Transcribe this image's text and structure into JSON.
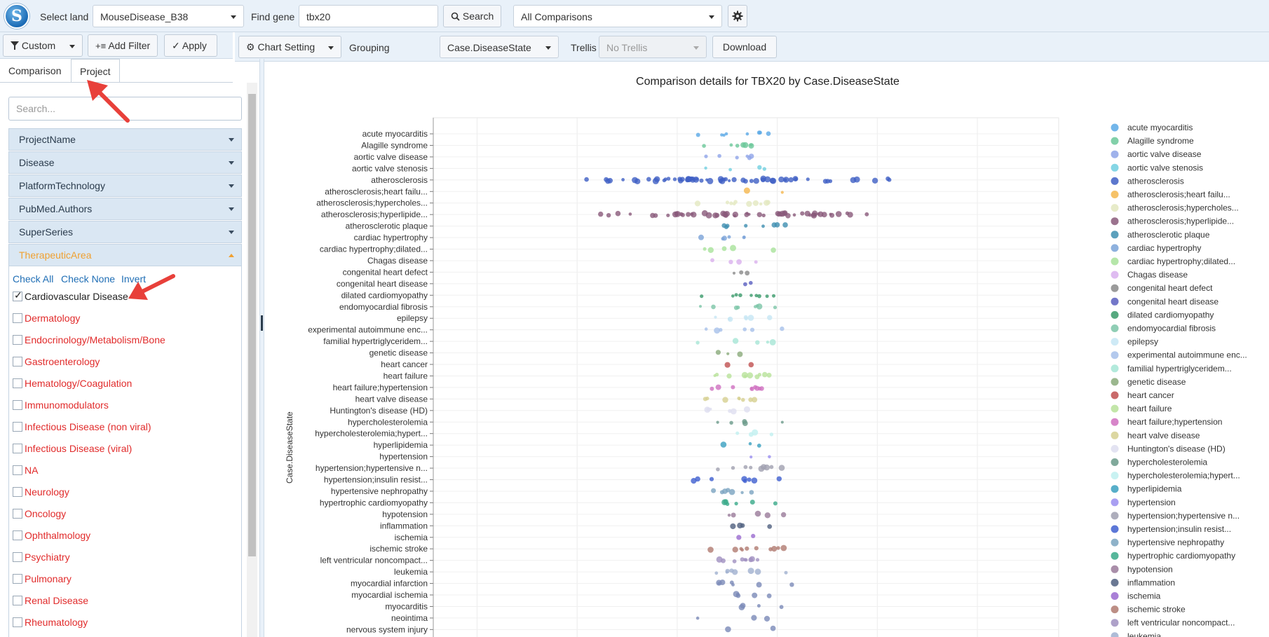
{
  "header": {
    "logo_letter": "S",
    "select_land_label": "Select land",
    "land_value": "MouseDisease_B38",
    "find_gene_label": "Find gene",
    "gene_value": "tbx20",
    "search_label": "Search",
    "comparisons_value": "All Comparisons"
  },
  "filterbar": {
    "custom_label": "Custom",
    "add_filter_label": "Add Filter",
    "apply_label": "Apply"
  },
  "toolbar": {
    "chart_setting_label": "Chart Setting",
    "grouping_label": "Grouping",
    "grouping_value": "Case.DiseaseState",
    "trellis_label": "Trellis",
    "trellis_value": "No Trellis",
    "download_label": "Download"
  },
  "tabs": [
    "Comparison",
    "Project"
  ],
  "search_placeholder": "Search...",
  "facets": [
    "ProjectName",
    "Disease",
    "PlatformTechnology",
    "PubMed.Authors",
    "SuperSeries",
    "TherapeuticArea"
  ],
  "facet_links": {
    "check_all": "Check All",
    "check_none": "Check None",
    "invert": "Invert"
  },
  "therapeutic_areas": [
    {
      "label": "Cardiovascular Disease",
      "checked": true
    },
    {
      "label": "Dermatology",
      "checked": false
    },
    {
      "label": "Endocrinology/Metabolism/Bone",
      "checked": false
    },
    {
      "label": "Gastroenterology",
      "checked": false
    },
    {
      "label": "Hematology/Coagulation",
      "checked": false
    },
    {
      "label": "Immunomodulators",
      "checked": false
    },
    {
      "label": "Infectious Disease (non viral)",
      "checked": false
    },
    {
      "label": "Infectious Disease (viral)",
      "checked": false
    },
    {
      "label": "NA",
      "checked": false
    },
    {
      "label": "Neurology",
      "checked": false
    },
    {
      "label": "Oncology",
      "checked": false
    },
    {
      "label": "Ophthalmology",
      "checked": false
    },
    {
      "label": "Psychiatry",
      "checked": false
    },
    {
      "label": "Pulmonary",
      "checked": false
    },
    {
      "label": "Renal Disease",
      "checked": false
    },
    {
      "label": "Rheumatology",
      "checked": false
    }
  ],
  "chart_data": {
    "type": "scatter",
    "title": "Comparison details for TBX20 by Case.DiseaseState",
    "ylabel": "Case.DiseaseState",
    "categories": [
      "acute myocarditis",
      "Alagille syndrome",
      "aortic valve disease",
      "aortic valve stenosis",
      "atherosclerosis",
      "atherosclerosis;heart failu...",
      "atherosclerosis;hypercholes...",
      "atherosclerosis;hyperlipide...",
      "atherosclerotic plaque",
      "cardiac hypertrophy",
      "cardiac hypertrophy;dilated...",
      "Chagas disease",
      "congenital heart defect",
      "congenital heart disease",
      "dilated cardiomyopathy",
      "endomyocardial fibrosis",
      "epilepsy",
      "experimental autoimmune enc...",
      "familial hypertriglyceridem...",
      "genetic disease",
      "heart cancer",
      "heart failure",
      "heart failure;hypertension",
      "heart valve disease",
      "Huntington's disease (HD)",
      "hypercholesterolemia",
      "hypercholesterolemia;hypert...",
      "hyperlipidemia",
      "hypertension",
      "hypertension;hypertensive n...",
      "hypertension;insulin resist...",
      "hypertensive nephropathy",
      "hypertrophic cardiomyopathy",
      "hypotension",
      "inflammation",
      "ischemia",
      "ischemic stroke",
      "left ventricular noncompact...",
      "leukemia",
      "myocardial infarction",
      "myocardial ischemia",
      "myocarditis",
      "neointima",
      "nervous system injury"
    ],
    "legend": [
      {
        "name": "acute myocarditis",
        "color": "#5aa9e6"
      },
      {
        "name": "Alagille syndrome",
        "color": "#6cc89a"
      },
      {
        "name": "aortic valve disease",
        "color": "#8ea4e8"
      },
      {
        "name": "aortic valve stenosis",
        "color": "#70cfe0"
      },
      {
        "name": "atherosclerosis",
        "color": "#3f5fc4"
      },
      {
        "name": "atherosclerosis;heart failu...",
        "color": "#f5b74e"
      },
      {
        "name": "atherosclerosis;hypercholes...",
        "color": "#e3e8c0"
      },
      {
        "name": "atherosclerosis;hyperlipide...",
        "color": "#8a5a7a"
      },
      {
        "name": "atherosclerotic plaque",
        "color": "#3f8fb0"
      },
      {
        "name": "cardiac hypertrophy",
        "color": "#7aa3d8"
      },
      {
        "name": "cardiac hypertrophy;dilated...",
        "color": "#a8e29a"
      },
      {
        "name": "Chagas disease",
        "color": "#d9b0ee"
      },
      {
        "name": "congenital heart defect",
        "color": "#8a8a8a"
      },
      {
        "name": "congenital heart disease",
        "color": "#5a5fc0"
      },
      {
        "name": "dilated cardiomyopathy",
        "color": "#3a9a6a"
      },
      {
        "name": "endomyocardial fibrosis",
        "color": "#7cc6a8"
      },
      {
        "name": "epilepsy",
        "color": "#c6e6f4"
      },
      {
        "name": "experimental autoimmune enc...",
        "color": "#a6c0ea"
      },
      {
        "name": "familial hypertriglyceridem...",
        "color": "#a6e6d6"
      },
      {
        "name": "genetic disease",
        "color": "#8aaa7a"
      },
      {
        "name": "heart cancer",
        "color": "#c05050"
      },
      {
        "name": "heart failure",
        "color": "#b8e29a"
      },
      {
        "name": "heart failure;hypertension",
        "color": "#d070c0"
      },
      {
        "name": "heart valve disease",
        "color": "#d6d090"
      },
      {
        "name": "Huntington's disease (HD)",
        "color": "#dedef0"
      },
      {
        "name": "hypercholesterolemia",
        "color": "#6a9a8a"
      },
      {
        "name": "hypercholesterolemia;hypert...",
        "color": "#c0f0f0"
      },
      {
        "name": "hyperlipidemia",
        "color": "#3aa0c0"
      },
      {
        "name": "hypertension",
        "color": "#9a8ef0"
      },
      {
        "name": "hypertension;hypertensive n...",
        "color": "#a0a0b0"
      },
      {
        "name": "hypertension;insulin resist...",
        "color": "#3f5fd0"
      },
      {
        "name": "hypertensive nephropathy",
        "color": "#7aa4c0"
      },
      {
        "name": "hypertrophic cardiomyopathy",
        "color": "#3aaa8a"
      },
      {
        "name": "hypotension",
        "color": "#9a7a9a"
      },
      {
        "name": "inflammation",
        "color": "#506080"
      },
      {
        "name": "ischemia",
        "color": "#9a6ad0"
      },
      {
        "name": "ischemic stroke",
        "color": "#b07a70"
      },
      {
        "name": "left ventricular noncompact...",
        "color": "#a090c0"
      },
      {
        "name": "leukemia",
        "color": "#a0b0d0"
      }
    ]
  }
}
